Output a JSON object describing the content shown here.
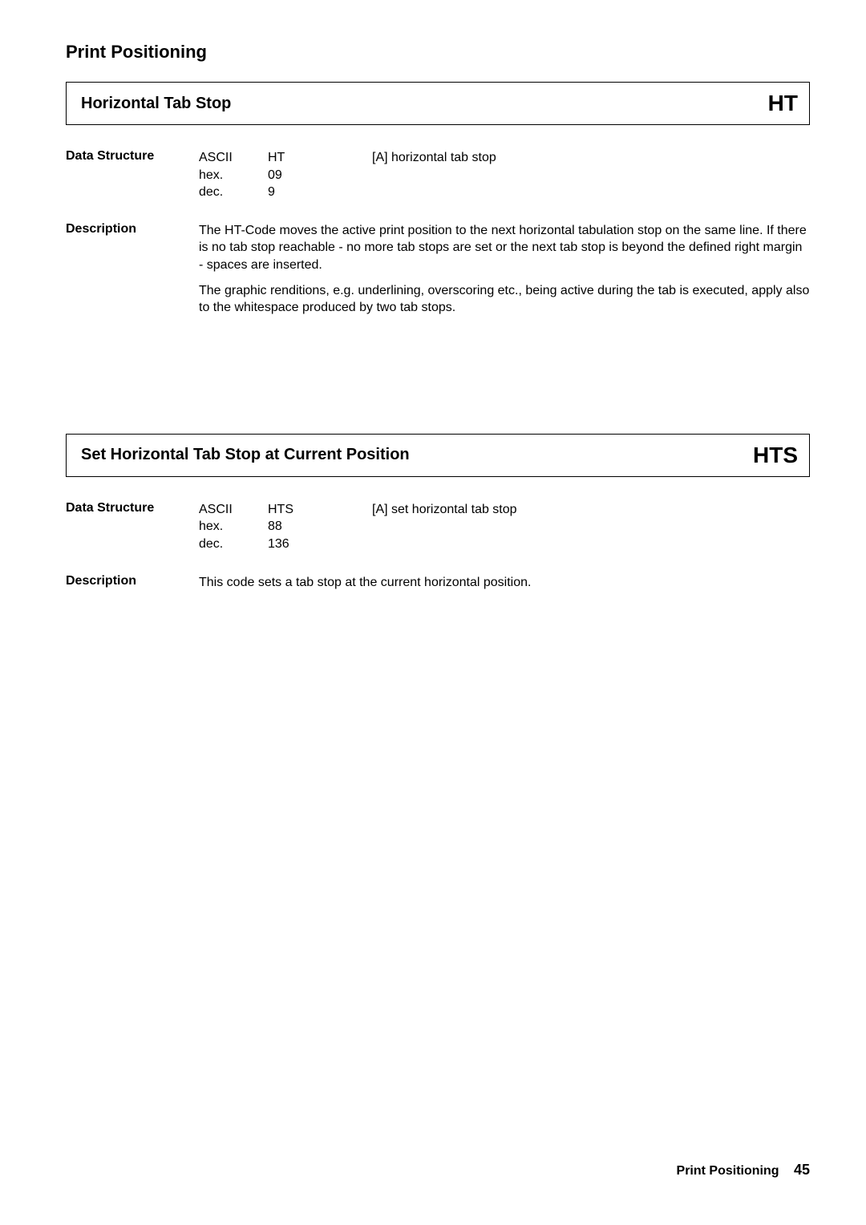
{
  "page_title": "Print Positioning",
  "section1": {
    "title": "Horizontal Tab Stop",
    "code": "HT",
    "data_structure_label": "Data Structure",
    "ds": {
      "r1c1": "ASCII",
      "r1c2": "HT",
      "r1c3": "[A]  horizontal tab stop",
      "r2c1": "hex.",
      "r2c2": "09",
      "r3c1": "dec.",
      "r3c2": "9"
    },
    "description_label": "Description",
    "desc_p1": "The HT-Code moves the active print position to the next horizontal tabulation stop on the same line. If there is no tab stop reachable - no more tab stops are set or the next tab stop is beyond the defined right margin -  spaces are inserted.",
    "desc_p2": "The graphic renditions, e.g. underlining, overscoring etc., being active during the tab is executed, apply also to the whitespace produced by two tab stops."
  },
  "section2": {
    "title": "Set Horizontal Tab Stop at Current Position",
    "code": "HTS",
    "data_structure_label": "Data Structure",
    "ds": {
      "r1c1": "ASCII",
      "r1c2": "HTS",
      "r1c3": "[A]  set horizontal tab stop",
      "r2c1": "hex.",
      "r2c2": "88",
      "r3c1": "dec.",
      "r3c2": "136"
    },
    "description_label": "Description",
    "desc_p1": "This code sets a tab stop at the current horizontal position."
  },
  "footer": {
    "text": "Print Positioning",
    "page": "45"
  }
}
